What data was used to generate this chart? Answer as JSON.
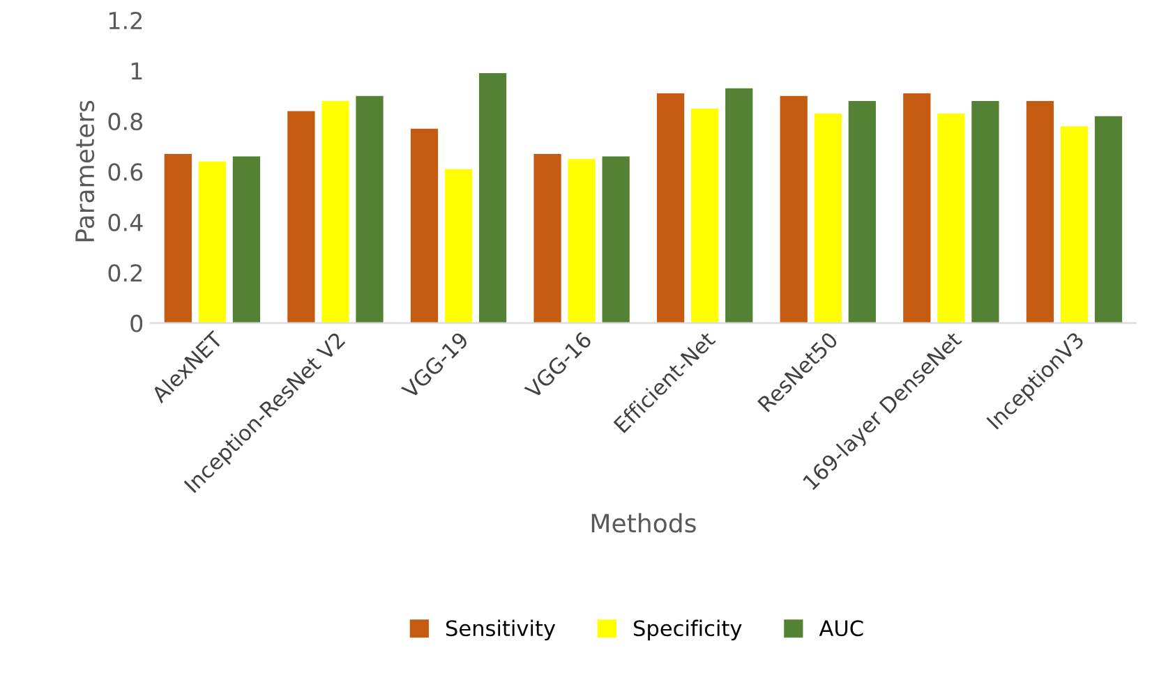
{
  "chart_data": {
    "type": "bar",
    "xlabel": "Methods",
    "ylabel": "Parameters",
    "categories": [
      "AlexNET",
      "Inception-ResNet V2",
      "VGG-19",
      "VGG-16",
      "Efficient-Net",
      "ResNet50",
      "169-layer DenseNet",
      "InceptionV3"
    ],
    "series": [
      {
        "name": "Sensitivity",
        "color": "#c55a11",
        "values": [
          0.67,
          0.84,
          0.77,
          0.67,
          0.91,
          0.9,
          0.91,
          0.88
        ]
      },
      {
        "name": "Specificity",
        "color": "#ffff00",
        "values": [
          0.64,
          0.88,
          0.61,
          0.65,
          0.85,
          0.83,
          0.83,
          0.78
        ]
      },
      {
        "name": "AUC",
        "color": "#548235",
        "values": [
          0.66,
          0.9,
          0.99,
          0.66,
          0.93,
          0.88,
          0.88,
          0.82
        ]
      }
    ],
    "ylim": [
      0,
      1.2
    ],
    "yticks": [
      0,
      0.2,
      0.4,
      0.6,
      0.8,
      1,
      1.2
    ],
    "grid": false,
    "legend": "bottom"
  }
}
